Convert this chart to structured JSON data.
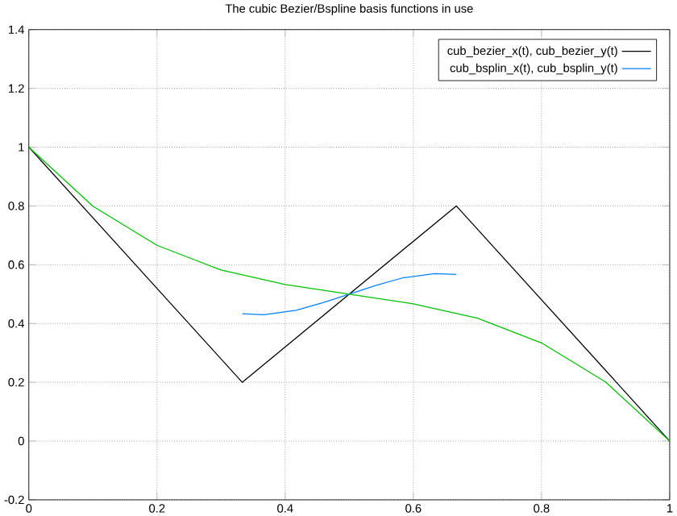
{
  "chart_data": {
    "type": "line",
    "title": "The cubic Bezier/Bspline basis functions in use",
    "series": [
      {
        "name": "cub_bezier_x(t), cub_bezier_y(t)",
        "color": "#000000",
        "x": [
          0,
          0.333,
          0.667,
          1
        ],
        "values": [
          1,
          0.2,
          0.8,
          0
        ]
      },
      {
        "name": "cub_bsplin_x(t), cub_bsplin_y(t)",
        "color": "#0080ff",
        "x": [
          0.333,
          0.367,
          0.417,
          0.458,
          0.5,
          0.542,
          0.583,
          0.633,
          0.667
        ],
        "values": [
          0.433,
          0.43,
          0.445,
          0.47,
          0.5,
          0.53,
          0.555,
          0.57,
          0.567
        ]
      },
      {
        "color": "#00c000",
        "x": [
          0,
          0.1,
          0.2,
          0.3,
          0.4,
          0.5,
          0.6,
          0.7,
          0.8,
          0.9,
          1
        ],
        "values": [
          1,
          0.799,
          0.666,
          0.582,
          0.533,
          0.5,
          0.467,
          0.418,
          0.334,
          0.201,
          0
        ]
      }
    ],
    "xlim": [
      0,
      1
    ],
    "ylim": [
      -0.2,
      1.4
    ],
    "xticks": [
      0,
      0.2,
      0.4,
      0.6,
      0.8,
      1
    ],
    "yticks": [
      -0.2,
      0,
      0.2,
      0.4,
      0.6,
      0.8,
      1,
      1.2,
      1.4
    ],
    "grid": true,
    "legend": "top right",
    "marker": "none",
    "line_style": "solid"
  }
}
